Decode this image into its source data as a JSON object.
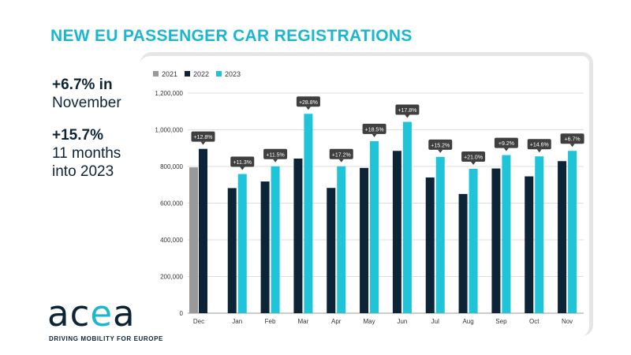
{
  "title": "NEW EU PASSENGER CAR REGISTRATIONS",
  "stats": [
    {
      "headline": "+6.7% in",
      "line2": "November",
      "line3": ""
    },
    {
      "headline": "+15.7%",
      "line2": "11 months",
      "line3": "into 2023"
    }
  ],
  "logo": {
    "text_a": "ac",
    "text_e": "e",
    "text_b": "a",
    "tagline": "DRIVING MOBILITY FOR EUROPE"
  },
  "colors": {
    "y2021": "#999999",
    "y2022": "#0d2436",
    "y2023": "#1fc4d8",
    "accent": "#1ab8d0",
    "label_bg": "#3f3f3f"
  },
  "chart_data": {
    "type": "bar",
    "title": "NEW EU PASSENGER CAR REGISTRATIONS",
    "xlabel": "",
    "ylabel": "",
    "ylim": [
      0,
      1200000
    ],
    "yticks": [
      0,
      200000,
      400000,
      600000,
      800000,
      1000000,
      1200000
    ],
    "ytick_labels": [
      "0",
      "200,000",
      "400,000",
      "600,000",
      "800,000",
      "1,000,000",
      "1,200,000"
    ],
    "grid": true,
    "legend_position": "top-left",
    "categories": [
      "Dec",
      "Jan",
      "Feb",
      "Mar",
      "Apr",
      "May",
      "Jun",
      "Jul",
      "Aug",
      "Sep",
      "Oct",
      "Nov"
    ],
    "series": [
      {
        "name": "2021",
        "values": [
          795000,
          null,
          null,
          null,
          null,
          null,
          null,
          null,
          null,
          null,
          null,
          null
        ]
      },
      {
        "name": "2022",
        "values": [
          896000,
          682000,
          718000,
          843000,
          683000,
          792000,
          885000,
          740000,
          650000,
          789000,
          746000,
          829000
        ]
      },
      {
        "name": "2023",
        "values": [
          null,
          759000,
          801000,
          1087000,
          801000,
          938000,
          1043000,
          852000,
          787000,
          862000,
          855000,
          885000
        ]
      }
    ],
    "annotations": [
      "+12.8%",
      "+11.3%",
      "+11.5%",
      "+28.8%",
      "+17.2%",
      "+18.5%",
      "+17.8%",
      "+15.2%",
      "+21.0%",
      "+9.2%",
      "+14.6%",
      "+6.7%"
    ]
  }
}
